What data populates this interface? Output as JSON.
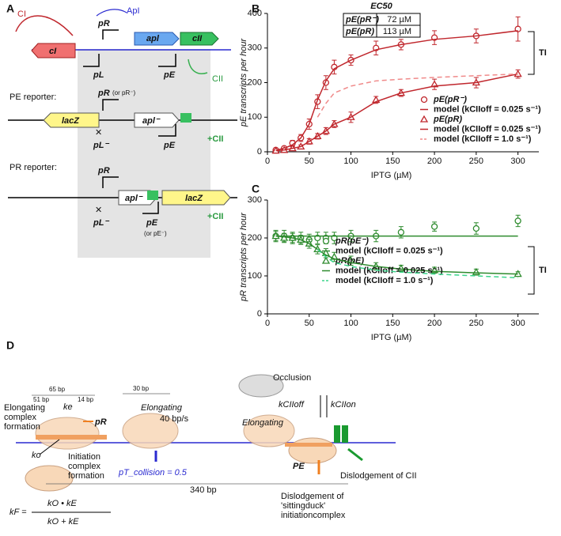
{
  "panel_labels": [
    "A",
    "B",
    "C",
    "D"
  ],
  "panel_a": [
    "CI",
    "ApI",
    "pR",
    "apl",
    "cII",
    "cI",
    "pL",
    "pE",
    "CII",
    "PE reporter:",
    "pR",
    "(or pR⁻)",
    "apl⁻",
    "lacZ",
    "pL⁻",
    "pE",
    "+CII",
    "PR reporter:",
    "pR",
    "apl⁻",
    "lacZ",
    "pL⁻",
    "pE",
    "(or pE⁻)",
    "+CII"
  ],
  "panel_d": [
    "65 bp",
    "51 bp",
    "14 bp",
    "30 bp",
    "Elongating",
    "complex",
    "formation",
    "ke",
    "pR",
    "Elongating",
    "40 bp/s",
    "ko",
    "Initiation",
    "complex",
    "formation",
    "pT_collision = 0.5",
    "340 bp",
    "Occlusion",
    "Elongating",
    "kCIIoff",
    "kCIIon",
    "PE",
    "Dislodgement of CII",
    "Dislodgement of",
    "'sittingduck'",
    "initiationcomplex",
    "kF =",
    "kO • kE",
    "kO + kE"
  ],
  "chart_data": [
    {
      "type": "line",
      "xlabel": "IPTG (µM)",
      "ylabel": "pE transcripts per hour",
      "annotation": "TI",
      "table": {
        "title": "EC50",
        "rows": [
          [
            "pE(pR⁻)",
            "72 µM"
          ],
          [
            "pE(pR)",
            "113 µM"
          ]
        ]
      },
      "x": [
        10,
        20,
        30,
        40,
        50,
        60,
        70,
        80,
        100,
        130,
        160,
        200,
        250,
        300
      ],
      "xlim": [
        0,
        325
      ],
      "xticks": [
        0,
        50,
        100,
        150,
        200,
        250,
        300
      ],
      "ylim": [
        0,
        400
      ],
      "yticks": [
        0,
        100,
        200,
        300,
        400
      ],
      "series": [
        {
          "name": "pE(pR⁻)",
          "color": "#c0272d",
          "style": "circle",
          "values": [
            5,
            10,
            25,
            40,
            80,
            145,
            200,
            245,
            265,
            300,
            310,
            330,
            335,
            355
          ],
          "errors": [
            5,
            5,
            8,
            10,
            15,
            20,
            20,
            20,
            15,
            20,
            15,
            20,
            20,
            35
          ]
        },
        {
          "name": "model (kCIIoff = 0.025 s⁻¹)",
          "color": "#c0272d",
          "style": "line",
          "values": [
            5,
            10,
            20,
            40,
            80,
            150,
            205,
            240,
            265,
            295,
            310,
            325,
            335,
            350
          ]
        },
        {
          "name": "pE(pR)",
          "color": "#c0272d",
          "style": "triangle",
          "values": [
            3,
            5,
            10,
            15,
            30,
            45,
            60,
            80,
            100,
            150,
            170,
            195,
            200,
            225
          ],
          "errors": [
            3,
            3,
            5,
            5,
            8,
            8,
            10,
            10,
            15,
            10,
            10,
            15,
            15,
            12
          ]
        },
        {
          "name": "model (kCIIoff = 0.025 s⁻¹)",
          "color": "#c0272d",
          "style": "line",
          "values": [
            3,
            5,
            10,
            15,
            30,
            45,
            60,
            80,
            100,
            145,
            170,
            190,
            200,
            225
          ]
        },
        {
          "name": "model (kCIIoff = 1.0 s⁻¹)",
          "color": "#f08a8a",
          "style": "dashed",
          "values": [
            null,
            null,
            null,
            null,
            null,
            100,
            140,
            170,
            190,
            205,
            210,
            215,
            220,
            225
          ]
        }
      ]
    },
    {
      "type": "line",
      "xlabel": "IPTG (µM)",
      "ylabel": "pR transcripts per hour",
      "annotation": "TI",
      "x": [
        10,
        20,
        30,
        40,
        50,
        60,
        70,
        80,
        100,
        130,
        160,
        200,
        250,
        300
      ],
      "xlim": [
        0,
        325
      ],
      "xticks": [
        0,
        50,
        100,
        150,
        200,
        250,
        300
      ],
      "ylim": [
        0,
        300
      ],
      "yticks": [
        0,
        100,
        200,
        300
      ],
      "series": [
        {
          "name": "pR(pE⁻)",
          "color": "#2e8b2e",
          "style": "circle",
          "values": [
            205,
            205,
            200,
            200,
            195,
            200,
            200,
            200,
            205,
            205,
            215,
            230,
            225,
            245
          ],
          "errors": [
            15,
            15,
            15,
            15,
            15,
            15,
            15,
            15,
            15,
            15,
            15,
            12,
            15,
            15
          ]
        },
        {
          "name": "model (kCIIoff = 0.025 s⁻¹)",
          "color": "#2e8b2e",
          "style": "line",
          "values": [
            205,
            205,
            205,
            205,
            205,
            205,
            205,
            205,
            205,
            205,
            205,
            205,
            205,
            205
          ]
        },
        {
          "name": "pR(pE)",
          "color": "#2e8b2e",
          "style": "triangle",
          "values": [
            205,
            200,
            200,
            195,
            185,
            170,
            160,
            150,
            140,
            125,
            120,
            115,
            110,
            105
          ],
          "errors": [
            12,
            12,
            12,
            12,
            12,
            12,
            12,
            12,
            12,
            10,
            8,
            8,
            8,
            6
          ]
        },
        {
          "name": "model (kCIIoff = 0.025 s⁻¹)",
          "color": "#2e8b2e",
          "style": "line",
          "values": [
            205,
            203,
            200,
            195,
            185,
            170,
            155,
            145,
            135,
            125,
            118,
            112,
            108,
            105
          ]
        },
        {
          "name": "model (kCIIoff = 1.0 s⁻¹)",
          "color": "#3cd68c",
          "style": "dashed",
          "values": [
            null,
            null,
            null,
            null,
            null,
            170,
            150,
            135,
            125,
            115,
            110,
            105,
            100,
            95
          ]
        }
      ]
    }
  ]
}
